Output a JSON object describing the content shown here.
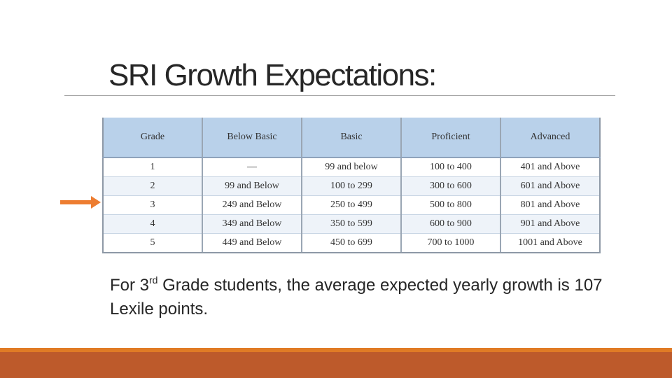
{
  "title": "SRI Growth Expectations:",
  "table": {
    "headers": [
      "Grade",
      "Below Basic",
      "Basic",
      "Proficient",
      "Advanced"
    ],
    "rows": [
      [
        "1",
        "—",
        "99 and below",
        "100 to 400",
        "401 and Above"
      ],
      [
        "2",
        "99 and Below",
        "100 to 299",
        "300 to 600",
        "601 and Above"
      ],
      [
        "3",
        "249 and Below",
        "250 to 499",
        "500 to 800",
        "801 and Above"
      ],
      [
        "4",
        "349 and Below",
        "350 to 599",
        "600 to 900",
        "901 and Above"
      ],
      [
        "5",
        "449 and Below",
        "450 to 699",
        "700 to 1000",
        "1001 and Above"
      ]
    ]
  },
  "arrow": {
    "icon": "right-arrow-icon",
    "color": "#ed7d31"
  },
  "summary": {
    "prefix": "For 3",
    "superscript": "rd",
    "text": " Grade students, the average expected yearly growth is 107 Lexile points."
  },
  "colors": {
    "header_fill": "#b9d1ea",
    "band_stripe": "#e07b25",
    "band_base": "#bd5a2b"
  }
}
